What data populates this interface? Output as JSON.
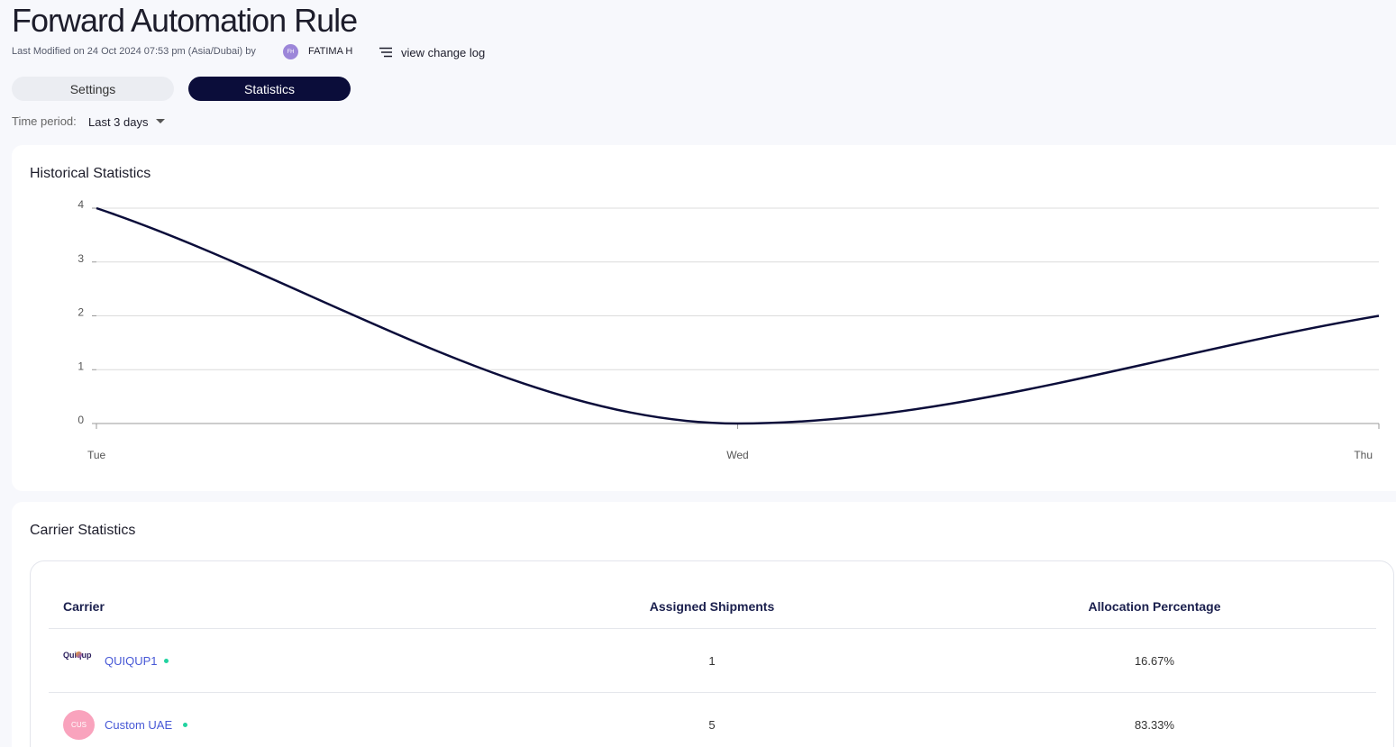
{
  "header": {
    "title": "Forward Automation Rule",
    "last_modified": "Last Modified on 24 Oct 2024 07:53 pm (Asia/Dubai) by",
    "user_initials": "FH",
    "user_name": "FATIMA H",
    "change_log": "view change log"
  },
  "tabs": [
    "Settings",
    "Statistics"
  ],
  "time_period": {
    "label": "Time period:",
    "value": "Last 3 days"
  },
  "chart_data": {
    "type": "line",
    "title": "Historical Statistics",
    "categories": [
      "Tue",
      "Wed",
      "Thu"
    ],
    "values": [
      4,
      0,
      2
    ],
    "color": "#0b0d3a",
    "ylim": [
      0,
      4
    ],
    "yticks": [
      0,
      1,
      2,
      3,
      4
    ],
    "grid": true
  },
  "carrier_statistics": {
    "title": "Carrier Statistics",
    "columns": [
      "Carrier",
      "Assigned Shipments",
      "Allocation Percentage"
    ],
    "rows": [
      {
        "logo": "Quiqup",
        "carrier": "QUIQUP1",
        "assigned": 1,
        "percentage": "16.67%"
      },
      {
        "logo": "CUS",
        "carrier": "Custom UAE",
        "assigned": 5,
        "percentage": "83.33%"
      }
    ]
  }
}
